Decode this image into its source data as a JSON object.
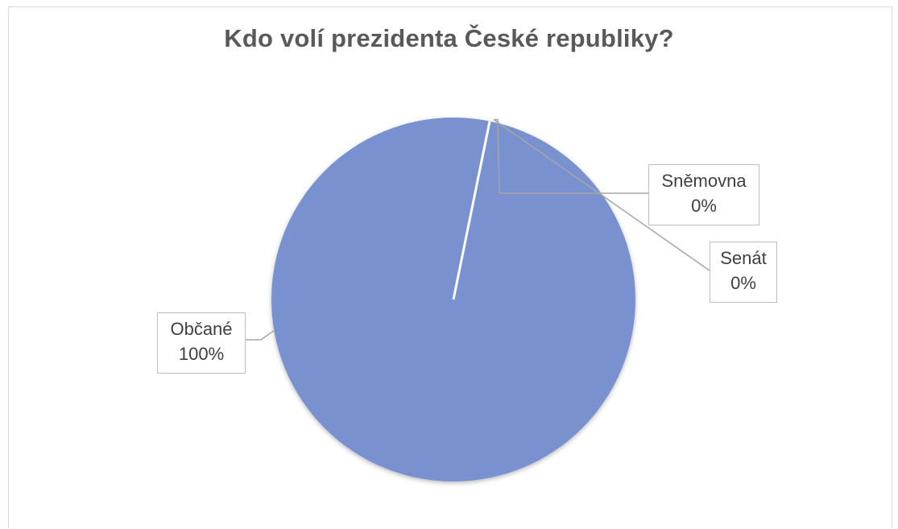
{
  "chart_data": {
    "type": "pie",
    "title": "Kdo volí prezidenta České republiky?",
    "categories": [
      "Občané",
      "Senát",
      "Sněmovna"
    ],
    "values": [
      100,
      0,
      0
    ],
    "unit": "%",
    "data_labels": [
      {
        "category": "Občané",
        "value_text": "100%"
      },
      {
        "category": "Senát",
        "value_text": "0%"
      },
      {
        "category": "Sněmovna",
        "value_text": "0%"
      }
    ],
    "legend": "none"
  },
  "colors": {
    "slice": "#7991cf",
    "slice_edge": "#ffffff",
    "label_border": "#bfbfbf",
    "leader_line": "#a6a6a6",
    "title": "#595959"
  }
}
